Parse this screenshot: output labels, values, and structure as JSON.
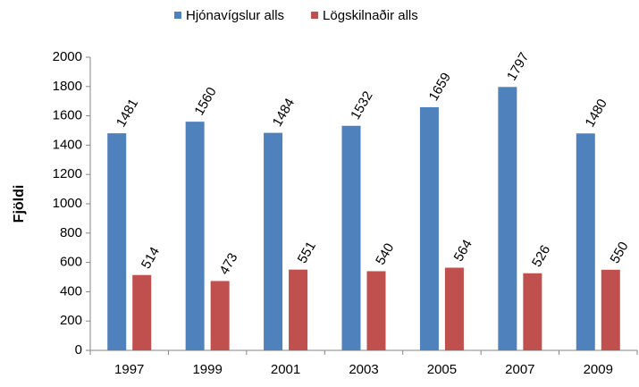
{
  "chart_data": {
    "type": "bar",
    "categories": [
      "1997",
      "1999",
      "2001",
      "2003",
      "2005",
      "2007",
      "2009"
    ],
    "series": [
      {
        "name": "Hjónavígslur alls",
        "color": "#4f81bd",
        "values": [
          1481,
          1560,
          1484,
          1532,
          1659,
          1797,
          1480
        ]
      },
      {
        "name": "Lögskilnaðir alls",
        "color": "#c0504d",
        "values": [
          514,
          473,
          551,
          540,
          564,
          526,
          550
        ]
      }
    ],
    "y_label": "Fjöldi",
    "ylim": [
      0,
      2000
    ],
    "yticks": [
      0,
      200,
      400,
      600,
      800,
      1000,
      1200,
      1400,
      1600,
      1800,
      2000
    ],
    "legend": "top"
  }
}
